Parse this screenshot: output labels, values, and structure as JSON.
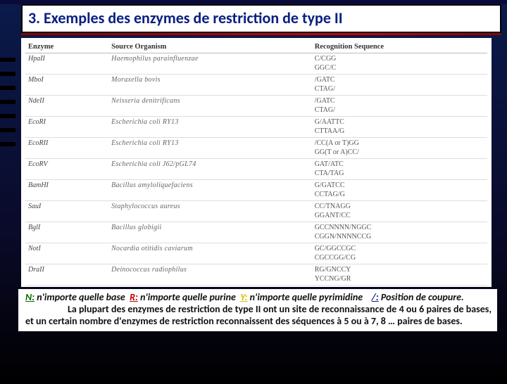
{
  "slide": {
    "title": "3. Exemples des enzymes de restriction de type II",
    "title_color": "#0a2080",
    "underline_color": "#b00000",
    "background_gradient": [
      "#0a1a4a",
      "#0a0a2a",
      "#000000"
    ],
    "table": {
      "columns": [
        "Enzyme",
        "Source Organism",
        "Recognition Sequence"
      ],
      "col_widths_pct": [
        18,
        44,
        38
      ],
      "header_color": "#333333",
      "cell_color": "#555555",
      "font_family": "Georgia",
      "font_size_pt": 7,
      "rows": [
        {
          "enzyme": "HpaII",
          "organism": "Haemophilus parainfluenzae",
          "seq1": "C/CGG",
          "seq2": "GGC/C"
        },
        {
          "enzyme": "MboI",
          "organism": "Moraxella bovis",
          "seq1": "/GATC",
          "seq2": "CTAG/"
        },
        {
          "enzyme": "NdeII",
          "organism": "Neisseria denitrificans",
          "seq1": "/GATC",
          "seq2": "CTAG/"
        },
        {
          "enzyme": "EcoRI",
          "organism": "Escherichia coli RY13",
          "seq1": "G/AATTC",
          "seq2": "CTTAA/G"
        },
        {
          "enzyme": "EcoRII",
          "organism": "Escherichia coli RY13",
          "seq1": "/CC(A or T)GG",
          "seq2": "GG(T or A)CC/"
        },
        {
          "enzyme": "EcoRV",
          "organism": "Escherichia coli J62/pGL74",
          "seq1": "GAT/ATC",
          "seq2": "CTA/TAG"
        },
        {
          "enzyme": "BamHI",
          "organism": "Bacillus amyloliquefaciens",
          "seq1": "G/GATCC",
          "seq2": "CCTAG/G"
        },
        {
          "enzyme": "SauI",
          "organism": "Staphylococcus aureus",
          "seq1": "CC/TNAGG",
          "seq2": "GGANT/CC"
        },
        {
          "enzyme": "BglI",
          "organism": "Bacillus globigii",
          "seq1": "GCCNNNN/NGGC",
          "seq2": "CGGN/NNNNCCG"
        },
        {
          "enzyme": "NotI",
          "organism": "Nocardia otitidis caviarum",
          "seq1": "GC/GGCCGC",
          "seq2": "CGCCGG/CG"
        },
        {
          "enzyme": "DraII",
          "organism": "Deinococcus radiophilus",
          "seq1": "RG/GNCCY",
          "seq2": "YCCNG/GR"
        }
      ]
    },
    "caption": {
      "legend": {
        "N_label": "N:",
        "N_text": "n'importe quelle base",
        "R_label": "R:",
        "R_text": "n'importe quelle purine",
        "Y_label": "Y:",
        "Y_text": "n'importe quelle pyrimidine",
        "slash_label": "/:",
        "slash_text": "Position de coupure."
      },
      "body": "La plupart des enzymes de restriction de type II ont un site de reconnaissance de 4 ou 6 paires de bases, et un certain nombre d'enzymes de restriction reconnaissent des séquences à 5 ou à 7, 8 … paires de bases.",
      "font_size_pt": 11,
      "text_color": "#111111",
      "background_color": "#ffffff"
    }
  }
}
